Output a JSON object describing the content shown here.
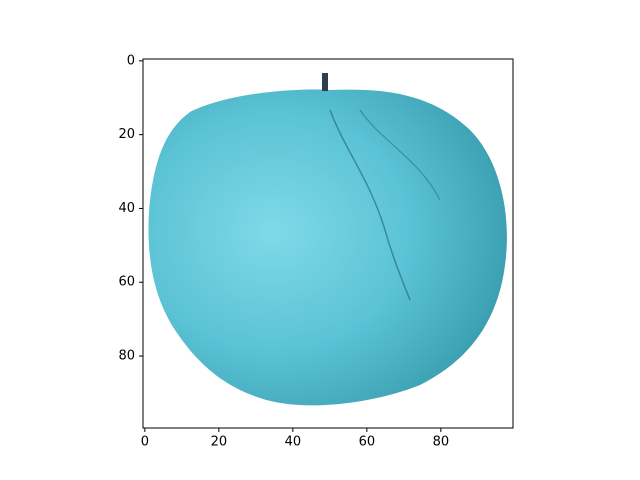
{
  "chart_data": {
    "type": "image",
    "xlim": [
      -0.5,
      99.5
    ],
    "ylim": [
      99.5,
      -0.5
    ],
    "xticks": [
      0,
      20,
      40,
      60,
      80
    ],
    "yticks": [
      0,
      20,
      40,
      60,
      80
    ]
  }
}
